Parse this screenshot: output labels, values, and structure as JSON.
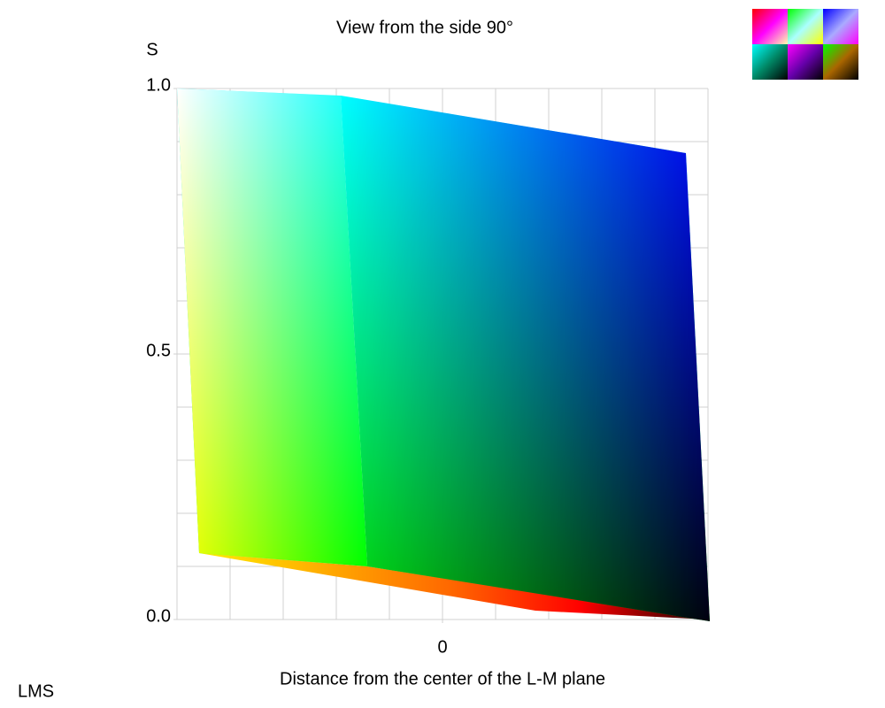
{
  "chart_data": {
    "type": "solid",
    "title": "View from the side 90°",
    "y_label": "S",
    "x_label": "Distance from the center of the L-M plane",
    "space_label": "LMS",
    "xlim": [
      -0.5,
      0.5
    ],
    "ylim": [
      0,
      1
    ],
    "xticks": [
      0
    ],
    "yticks": [
      {
        "value": 0,
        "label": "0.0"
      },
      {
        "value": 0.5,
        "label": "0.5"
      },
      {
        "value": 1,
        "label": "1.0"
      }
    ],
    "xgrid": [
      -0.5,
      -0.4,
      -0.3,
      -0.2,
      -0.1,
      0,
      0.1,
      0.2,
      0.3,
      0.4,
      0.5
    ],
    "ygrid": [
      0,
      0.1,
      0.2,
      0.3,
      0.4,
      0.5,
      0.6,
      0.7,
      0.8,
      0.9,
      1
    ],
    "grid": true
  }
}
